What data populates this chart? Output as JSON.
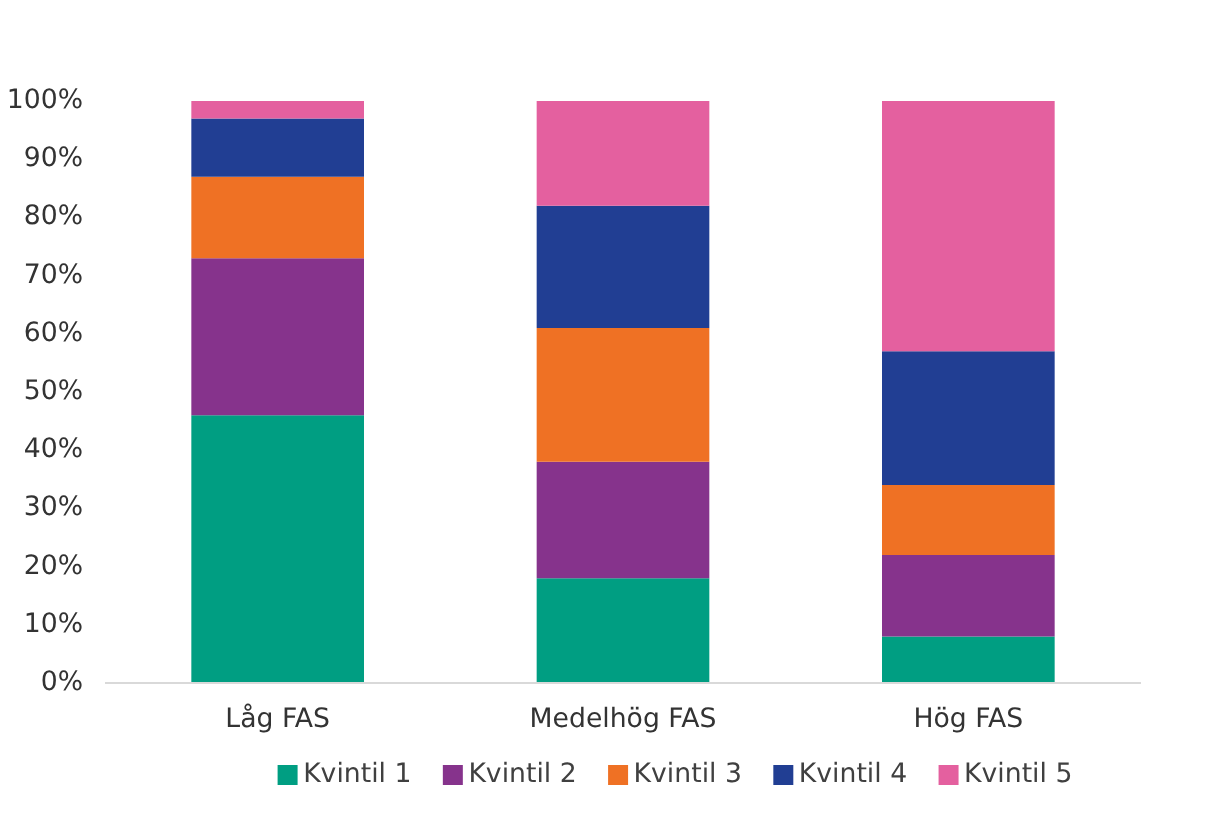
{
  "chart_data": {
    "type": "bar",
    "stacked": true,
    "categories": [
      "Låg FAS",
      "Medelhög FAS",
      "Hög FAS"
    ],
    "series": [
      {
        "name": "Kvintil 1",
        "color": "#009e82",
        "values": [
          46,
          18,
          8
        ]
      },
      {
        "name": "Kvintil 2",
        "color": "#86338c",
        "values": [
          27,
          20,
          14
        ]
      },
      {
        "name": "Kvintil 3",
        "color": "#ef7124",
        "values": [
          14,
          23,
          12
        ]
      },
      {
        "name": "Kvintil 4",
        "color": "#213e93",
        "values": [
          10,
          21,
          23
        ]
      },
      {
        "name": "Kvintil 5",
        "color": "#e4609f",
        "values": [
          3,
          18,
          43
        ]
      }
    ],
    "ylim": [
      0,
      100
    ],
    "yticks": [
      {
        "value": 0,
        "label": "0%"
      },
      {
        "value": 10,
        "label": "10%"
      },
      {
        "value": 20,
        "label": "20%"
      },
      {
        "value": 30,
        "label": "30%"
      },
      {
        "value": 40,
        "label": "40%"
      },
      {
        "value": 50,
        "label": "50%"
      },
      {
        "value": 60,
        "label": "60%"
      },
      {
        "value": 70,
        "label": "70%"
      },
      {
        "value": 80,
        "label": "80%"
      },
      {
        "value": 90,
        "label": "90%"
      },
      {
        "value": 100,
        "label": "100%"
      }
    ],
    "grid": false,
    "legend": "bottom"
  }
}
